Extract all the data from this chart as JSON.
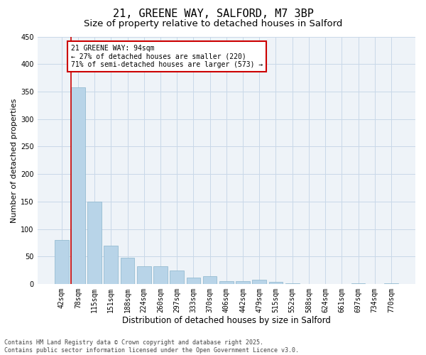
{
  "title1": "21, GREENE WAY, SALFORD, M7 3BP",
  "title2": "Size of property relative to detached houses in Salford",
  "xlabel": "Distribution of detached houses by size in Salford",
  "ylabel": "Number of detached properties",
  "categories": [
    "42sqm",
    "78sqm",
    "115sqm",
    "151sqm",
    "188sqm",
    "224sqm",
    "260sqm",
    "297sqm",
    "333sqm",
    "370sqm",
    "406sqm",
    "442sqm",
    "479sqm",
    "515sqm",
    "552sqm",
    "588sqm",
    "624sqm",
    "661sqm",
    "697sqm",
    "734sqm",
    "770sqm"
  ],
  "values": [
    80,
    358,
    150,
    70,
    48,
    33,
    33,
    25,
    12,
    15,
    6,
    6,
    8,
    4,
    1,
    0,
    0,
    0,
    1,
    0,
    2
  ],
  "bar_color": "#b8d4e8",
  "bar_edge_color": "#8ab4cc",
  "grid_color": "#c8d8e8",
  "background_color": "#eef3f8",
  "vline_color": "#cc0000",
  "annotation_text": "21 GREENE WAY: 94sqm\n← 27% of detached houses are smaller (220)\n71% of semi-detached houses are larger (573) →",
  "annotation_box_facecolor": "#ffffff",
  "annotation_box_edgecolor": "#cc0000",
  "ylim": [
    0,
    450
  ],
  "yticks": [
    0,
    50,
    100,
    150,
    200,
    250,
    300,
    350,
    400,
    450
  ],
  "footer": "Contains HM Land Registry data © Crown copyright and database right 2025.\nContains public sector information licensed under the Open Government Licence v3.0.",
  "title1_fontsize": 11,
  "title2_fontsize": 9.5,
  "xlabel_fontsize": 8.5,
  "ylabel_fontsize": 8,
  "tick_fontsize": 7,
  "annotation_fontsize": 7,
  "footer_fontsize": 6
}
